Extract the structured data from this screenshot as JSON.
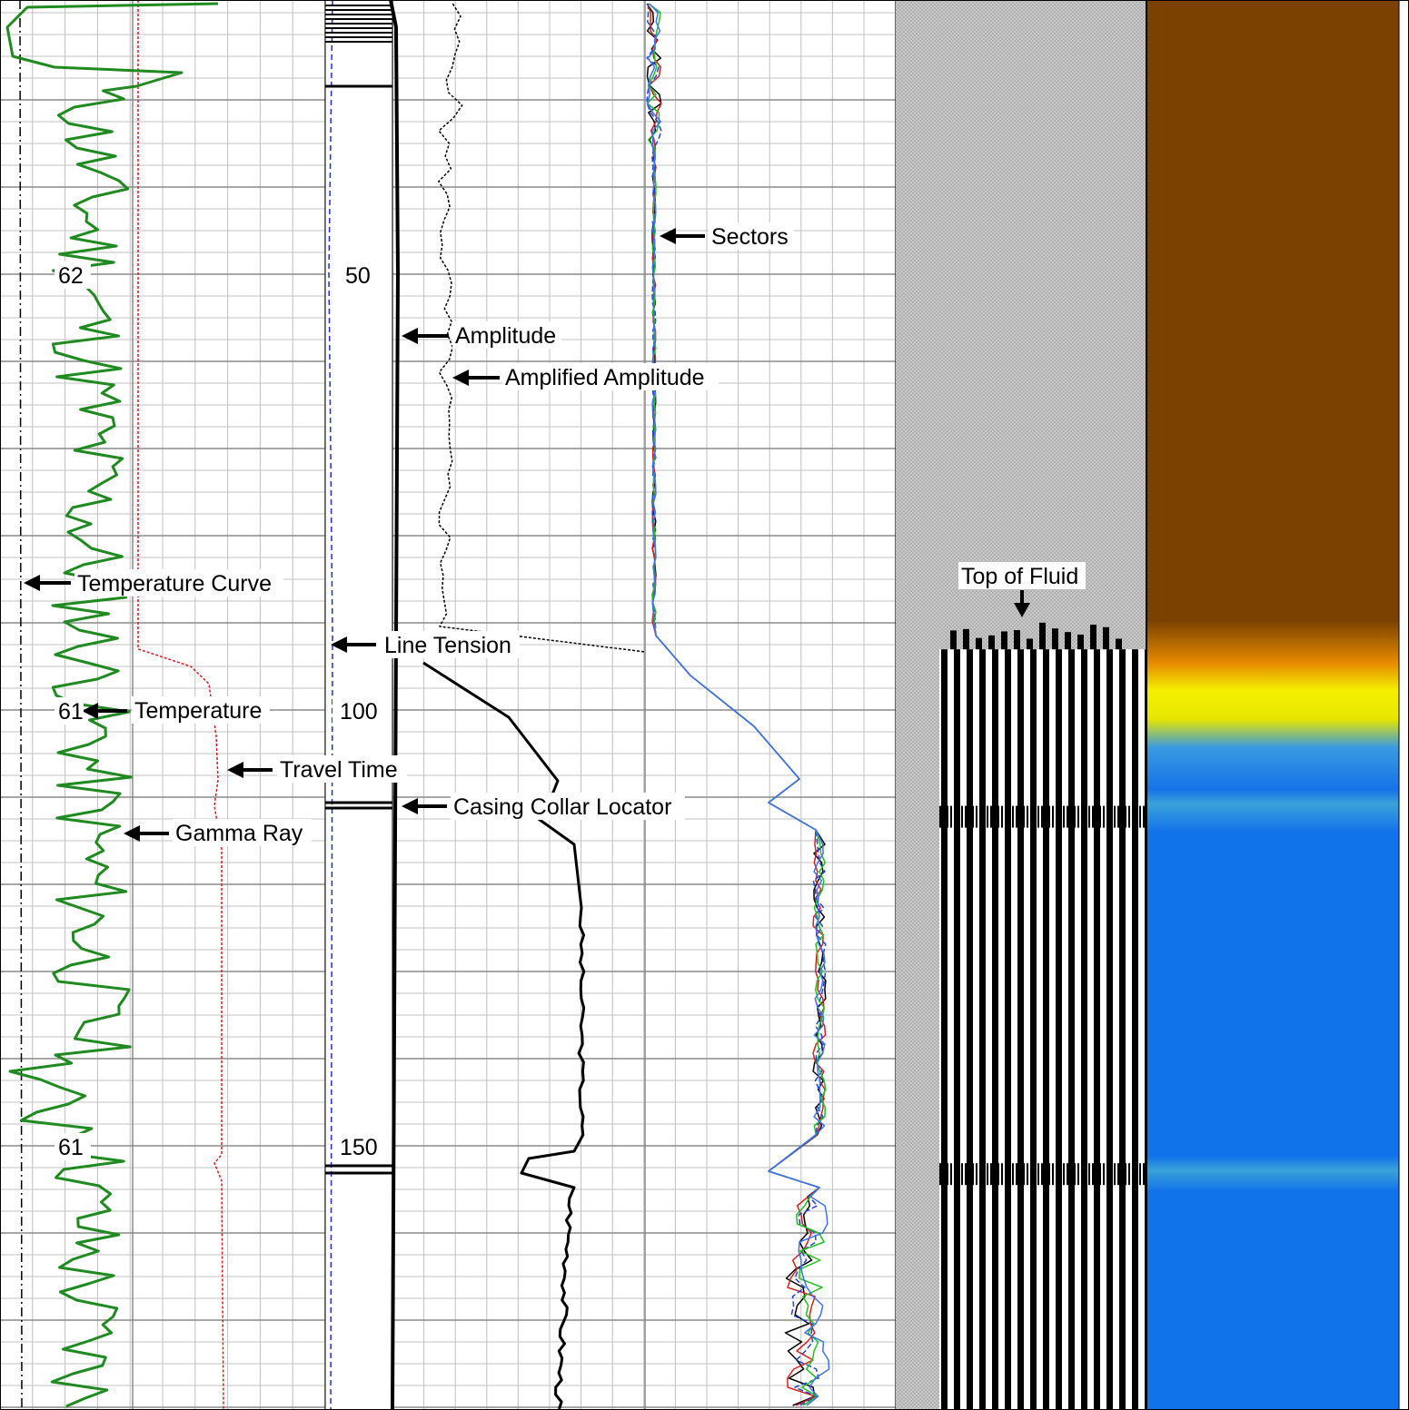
{
  "chart_data": {
    "type": "line",
    "tracks": [
      {
        "id": "track1",
        "curves": [
          "Temperature Curve",
          "Temperature",
          "Travel Time",
          "Gamma Ray"
        ]
      },
      {
        "id": "depth",
        "curves": [
          "Line Tension",
          "Casing Collar Locator"
        ]
      },
      {
        "id": "track2",
        "curves": [
          "Amplitude",
          "Amplified Amplitude",
          "Casing Collar Locator"
        ]
      },
      {
        "id": "track3",
        "curves": [
          "Sectors"
        ]
      },
      {
        "id": "track4",
        "curves": [
          "Waveform"
        ]
      },
      {
        "id": "track5",
        "curves": [
          "Map"
        ]
      }
    ],
    "depth_ticks": [
      {
        "depth": 50,
        "label": "50",
        "track1_label": "62"
      },
      {
        "depth": 100,
        "label": "100",
        "track1_label": "61"
      },
      {
        "depth": 150,
        "label": "150",
        "track1_label": "61"
      }
    ],
    "ylim": [
      19,
      180
    ],
    "annotations": [
      {
        "key": "sectors",
        "text": "Sectors"
      },
      {
        "key": "amplitude",
        "text": "Amplitude"
      },
      {
        "key": "amplified",
        "text": "Amplified Amplitude"
      },
      {
        "key": "tempcurve",
        "text": "Temperature Curve"
      },
      {
        "key": "tension",
        "text": "Line Tension"
      },
      {
        "key": "temp",
        "text": "Temperature"
      },
      {
        "key": "travel",
        "text": "Travel Time"
      },
      {
        "key": "ccl",
        "text": "Casing Collar Locator"
      },
      {
        "key": "gamma",
        "text": "Gamma Ray"
      },
      {
        "key": "fluid",
        "text": "Top of Fluid"
      }
    ],
    "top_of_fluid_depth": 92,
    "colors": {
      "gamma_ray": "#1f8a1f",
      "travel_time": "#d42020",
      "line_tension": "#2030d0",
      "map_dry": "#7a4100",
      "map_transition": "#f5f000",
      "map_fluid": "#1173ea"
    }
  }
}
